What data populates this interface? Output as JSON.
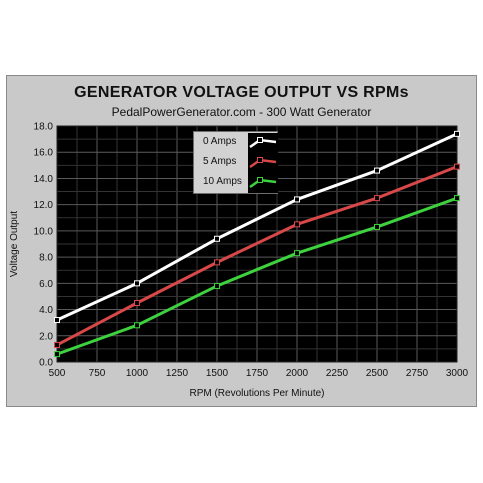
{
  "title": "GENERATOR VOLTAGE OUTPUT VS RPMs",
  "subtitle": "PedalPowerGenerator.com  - 300 Watt Generator",
  "colors": {
    "plot_bg": "#000000",
    "grid": "#4d4d4d",
    "frame": "#c9c9c9"
  },
  "chart_data": {
    "type": "line",
    "title": "GENERATOR VOLTAGE OUTPUT VS RPMs",
    "subtitle": "PedalPowerGenerator.com  - 300 Watt Generator",
    "xlabel": "RPM (Revolutions Per Minute)",
    "ylabel": "Voltage Output",
    "xlim": [
      500,
      3000
    ],
    "ylim": [
      0,
      18
    ],
    "xticks": [
      500,
      750,
      1000,
      1250,
      1500,
      1750,
      2000,
      2250,
      2500,
      2750,
      3000
    ],
    "yticks": [
      "0.0",
      "2.0",
      "4.0",
      "6.0",
      "8.0",
      "10.0",
      "12.0",
      "14.0",
      "16.0",
      "18.0"
    ],
    "grid": true,
    "legend_position": "top-center",
    "x": [
      500,
      1000,
      1500,
      2000,
      2500,
      3000
    ],
    "series": [
      {
        "name": "0 Amps",
        "color": "#ffffff",
        "values": [
          3.2,
          6.0,
          9.4,
          12.4,
          14.6,
          17.4
        ]
      },
      {
        "name": "5 Amps",
        "color": "#d84848",
        "values": [
          1.3,
          4.5,
          7.6,
          10.5,
          12.5,
          14.9
        ]
      },
      {
        "name": "10 Amps",
        "color": "#3ed23e",
        "values": [
          0.6,
          2.8,
          5.8,
          8.3,
          10.3,
          12.5
        ]
      }
    ]
  }
}
